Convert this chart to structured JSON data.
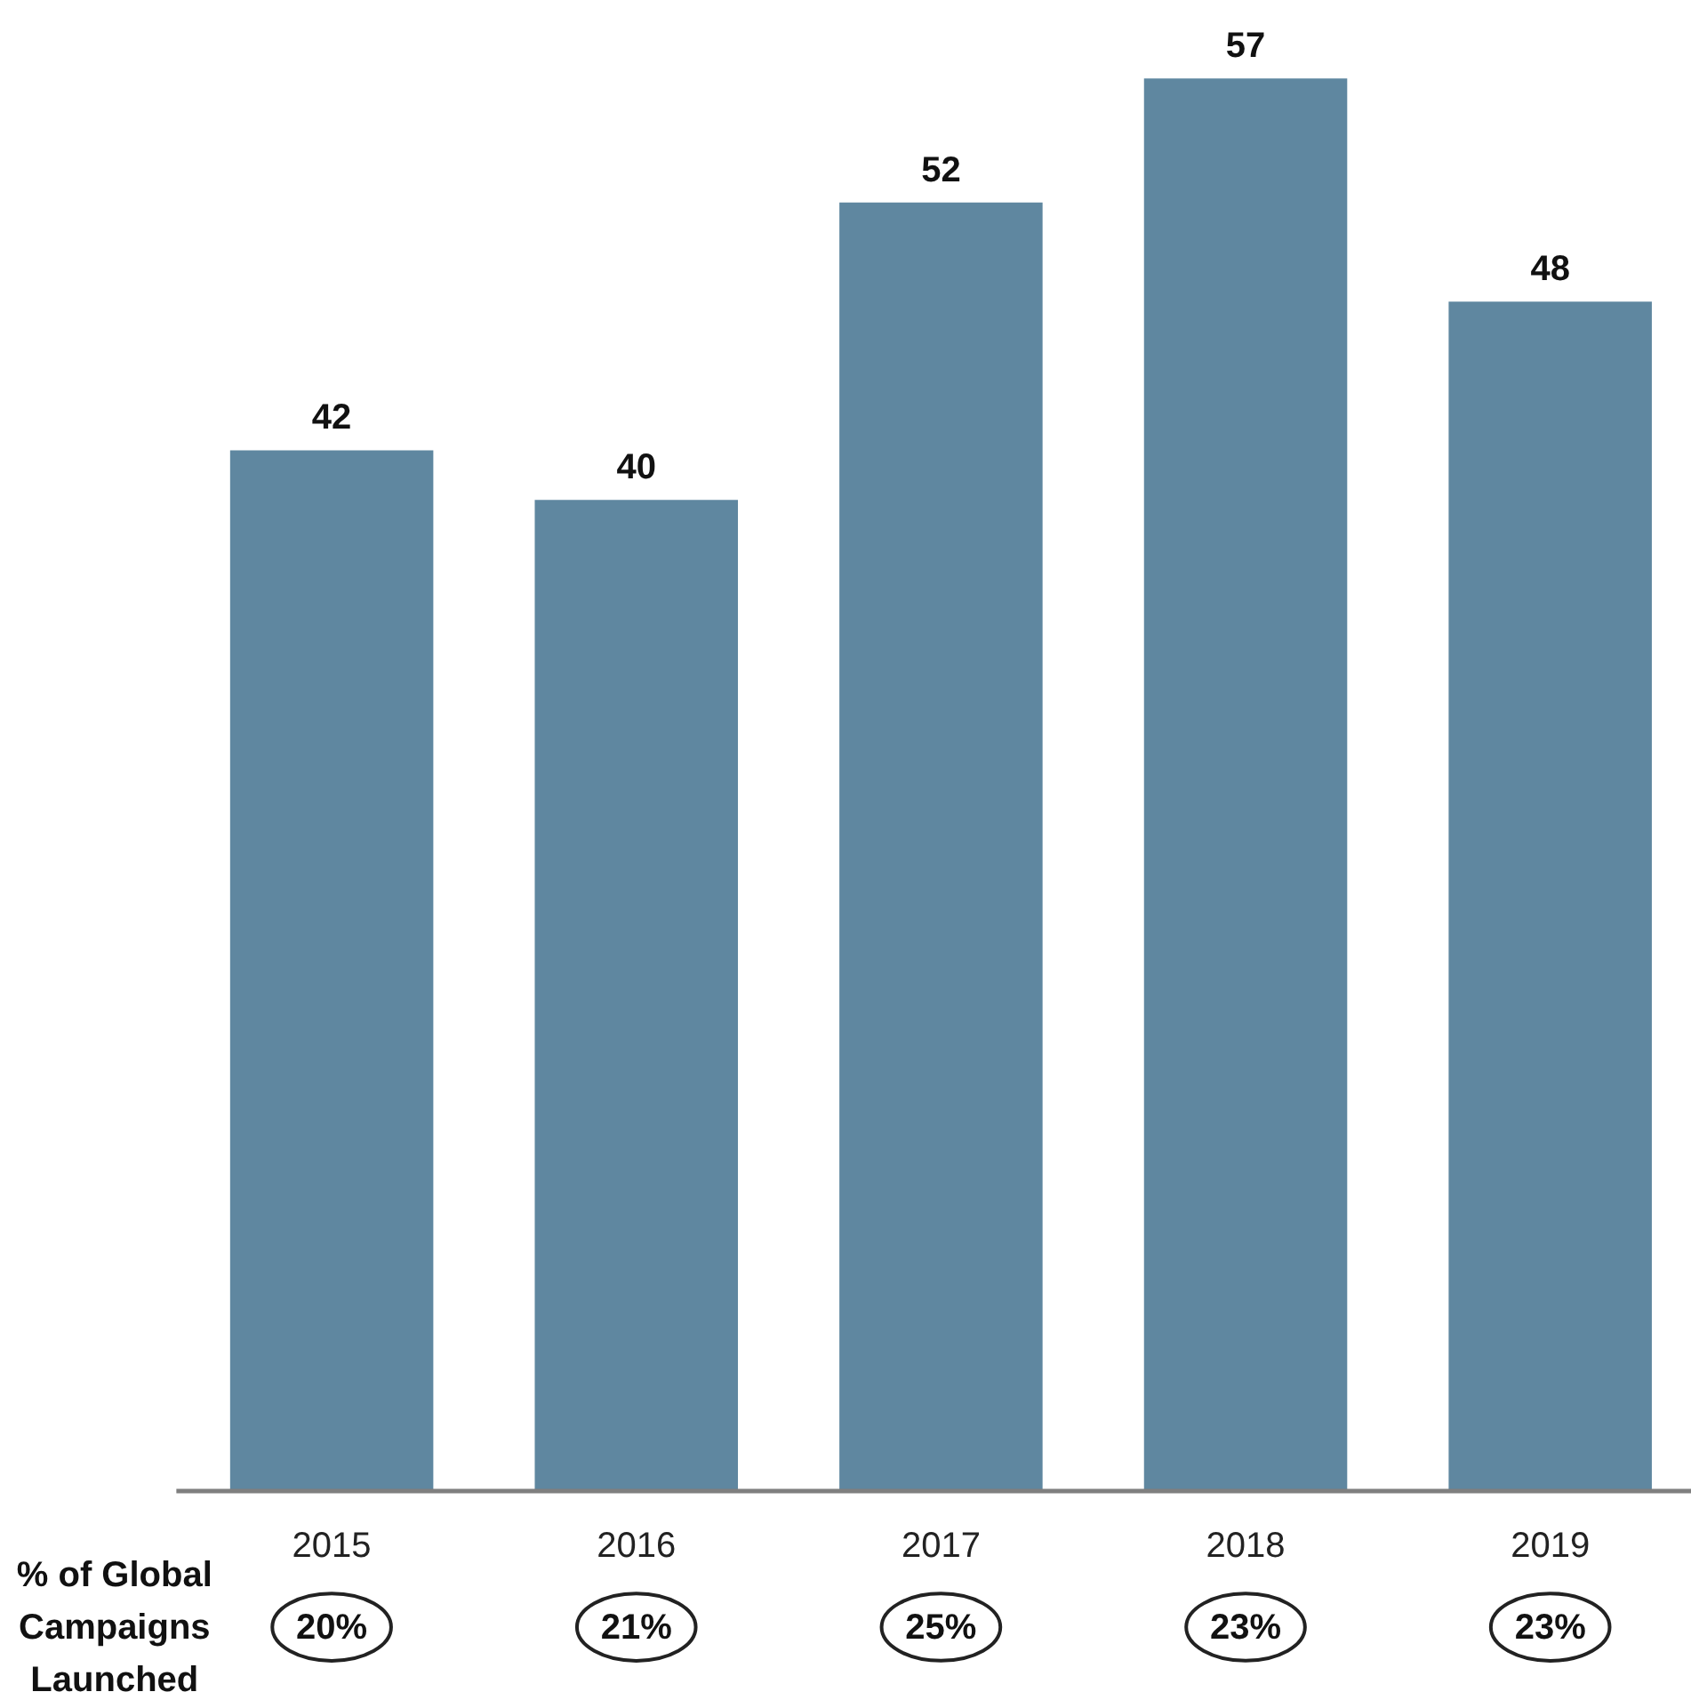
{
  "chart_data": {
    "type": "bar",
    "categories": [
      "2015",
      "2016",
      "2017",
      "2018",
      "2019"
    ],
    "values": [
      42,
      40,
      52,
      57,
      48
    ],
    "color": "#5f87a0",
    "data_labels": true,
    "annotations": [
      "% of Global\nCampaigns\nLaunched",
      "20%",
      "21%",
      "25%",
      "23%",
      "23%"
    ]
  }
}
